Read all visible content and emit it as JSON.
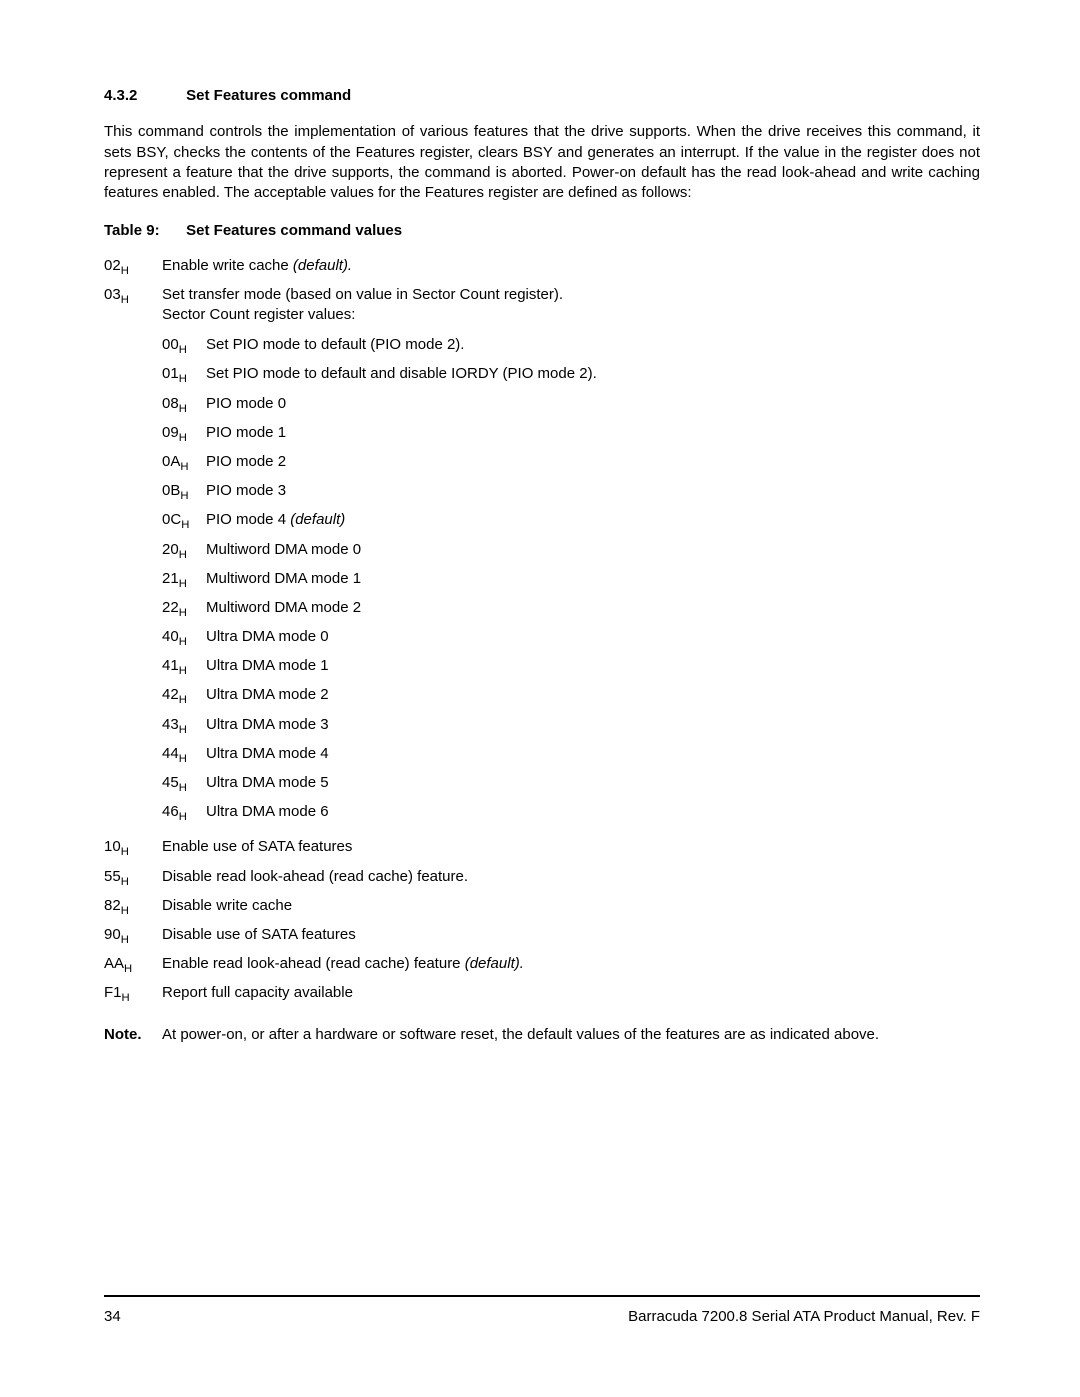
{
  "section": {
    "number": "4.3.2",
    "title": "Set Features command"
  },
  "paragraph": "This command controls the implementation of various features that the drive supports. When the drive receives this command, it sets BSY, checks the contents of the Features register, clears BSY and generates an interrupt. If the value in the register does not represent a feature that the drive supports, the command is aborted. Power-on default has the read look-ahead and write caching features enabled. The acceptable values for the Features register are defined as follows:",
  "table_caption": {
    "label": "Table 9:",
    "title": "Set Features command values"
  },
  "features": [
    {
      "code": "02",
      "desc": "Enable write cache ",
      "suffix_italic": "(default)."
    },
    {
      "code": "03",
      "desc": "Set transfer mode (based on value in Sector Count register).",
      "line2": "Sector Count register values:"
    }
  ],
  "sector_count": [
    {
      "code": "00",
      "desc": "Set PIO mode to default (PIO mode 2)."
    },
    {
      "code": "01",
      "desc": "Set PIO mode to default and disable IORDY (PIO mode 2)."
    },
    {
      "code": "08",
      "desc": "PIO mode 0"
    },
    {
      "code": "09",
      "desc": "PIO mode 1"
    },
    {
      "code": "0A",
      "desc": "PIO mode 2"
    },
    {
      "code": "0B",
      "desc": "PIO mode 3"
    },
    {
      "code": "0C",
      "desc": "PIO mode 4 ",
      "suffix_italic": "(default)"
    },
    {
      "code": "20",
      "desc": "Multiword DMA mode 0"
    },
    {
      "code": "21",
      "desc": "Multiword DMA mode 1"
    },
    {
      "code": "22",
      "desc": "Multiword DMA mode 2"
    },
    {
      "code": "40",
      "desc": "Ultra DMA mode 0"
    },
    {
      "code": "41",
      "desc": "Ultra DMA mode 1"
    },
    {
      "code": "42",
      "desc": "Ultra DMA mode 2"
    },
    {
      "code": "43",
      "desc": "Ultra DMA mode 3"
    },
    {
      "code": "44",
      "desc": "Ultra DMA mode 4"
    },
    {
      "code": "45",
      "desc": "Ultra DMA mode 5"
    },
    {
      "code": "46",
      "desc": "Ultra DMA mode 6"
    }
  ],
  "features_after": [
    {
      "code": "10",
      "desc": "Enable use of SATA features"
    },
    {
      "code": "55",
      "desc": "Disable read look-ahead (read cache) feature."
    },
    {
      "code": "82",
      "desc": "Disable write cache"
    },
    {
      "code": "90",
      "desc": "Disable use of SATA features"
    },
    {
      "code": "AA",
      "desc": "Enable read look-ahead (read cache) feature ",
      "suffix_italic": "(default)."
    },
    {
      "code": "F1",
      "desc": "Report full capacity available"
    }
  ],
  "note": {
    "label": "Note.",
    "text": "At power-on, or after a hardware or software reset, the default values of the features are as indicated above."
  },
  "footer": {
    "page": "34",
    "title": "Barracuda 7200.8 Serial ATA Product Manual, Rev. F"
  },
  "subscript": "H"
}
